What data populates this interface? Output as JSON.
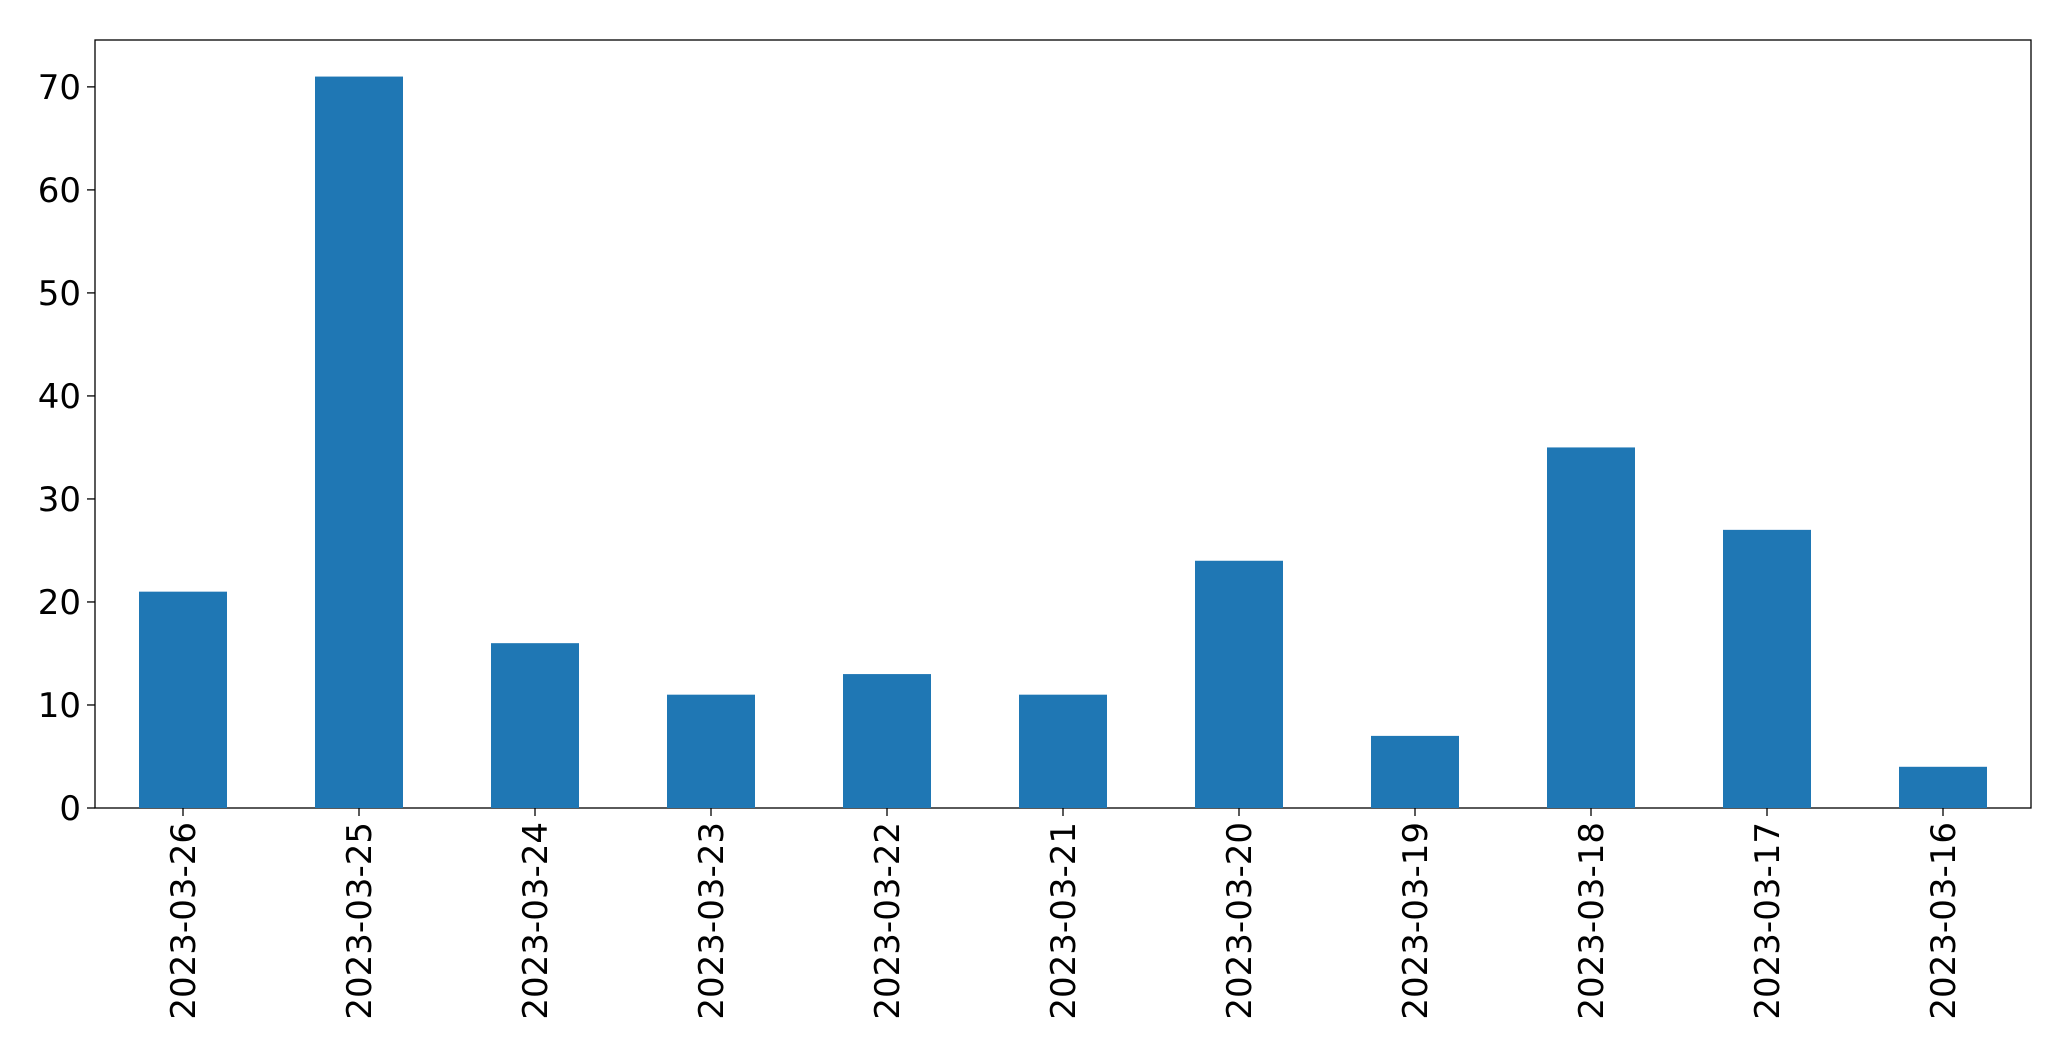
{
  "chart_data": {
    "type": "bar",
    "categories": [
      "2023-03-26",
      "2023-03-25",
      "2023-03-24",
      "2023-03-23",
      "2023-03-22",
      "2023-03-21",
      "2023-03-20",
      "2023-03-19",
      "2023-03-18",
      "2023-03-17",
      "2023-03-16"
    ],
    "values": [
      21,
      71,
      16,
      11,
      13,
      11,
      24,
      7,
      35,
      27,
      4
    ],
    "color": "#1f77b4",
    "ylim": [
      0,
      74.55
    ],
    "yticks": [
      0,
      10,
      20,
      30,
      40,
      50,
      60,
      70
    ],
    "grid": false
  }
}
